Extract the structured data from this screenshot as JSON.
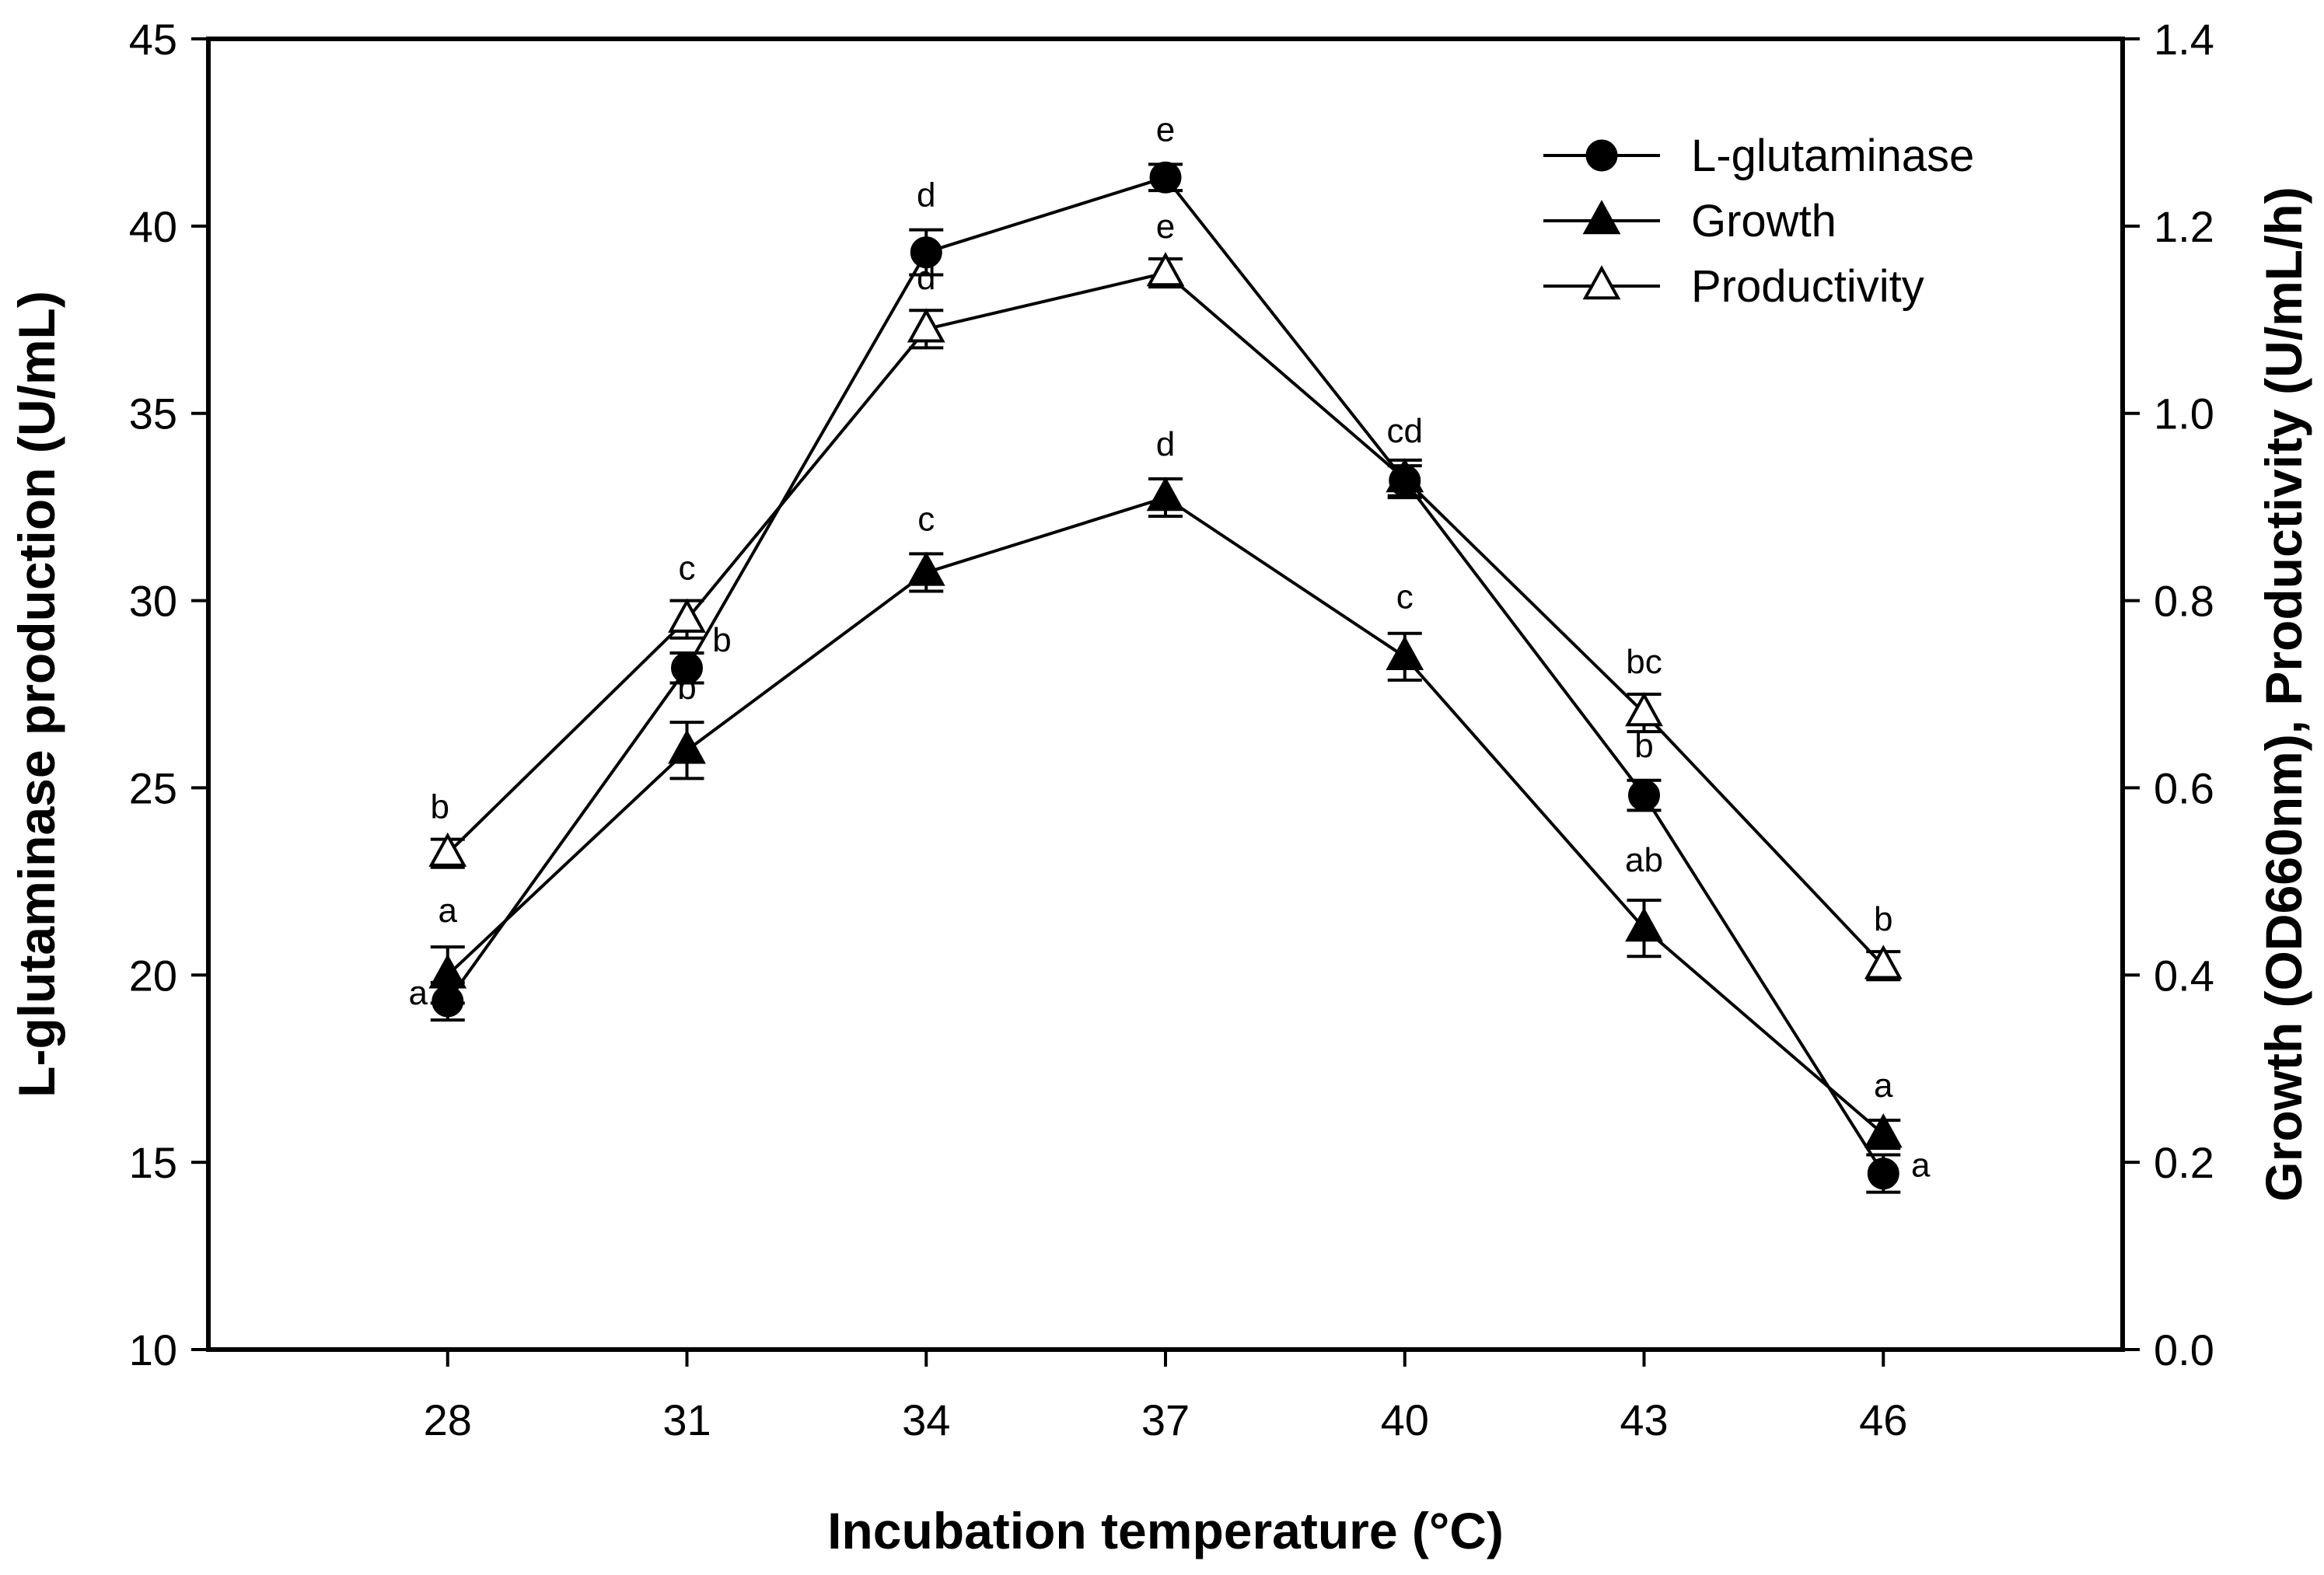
{
  "chart_data": {
    "type": "line",
    "title": "",
    "xlabel": "Incubation temperature (°C)",
    "ylabel": "L-glutaminase production (U/mL)",
    "y2label": "Growth (OD660nm), Productivity (U/mL/h)",
    "categories": [
      "28",
      "31",
      "34",
      "37",
      "40",
      "43",
      "46"
    ],
    "x": [
      28,
      31,
      34,
      37,
      40,
      43,
      46
    ],
    "xlim": [
      25,
      49
    ],
    "ylim": [
      10,
      45
    ],
    "y2lim": [
      0.0,
      1.4
    ],
    "yticks": [
      "10",
      "15",
      "20",
      "25",
      "30",
      "35",
      "40",
      "45"
    ],
    "y2ticks": [
      "0.0",
      "0.2",
      "0.4",
      "0.6",
      "0.8",
      "1.0",
      "1.2",
      "1.4"
    ],
    "grid": false,
    "legend_position": "top-right",
    "colors": {
      "line": "#000000",
      "fill": "#000000",
      "open": "#ffffff"
    },
    "series": [
      {
        "name": "L-glutaminase",
        "axis": "left",
        "marker": "filled-circle",
        "values": [
          19.3,
          28.2,
          39.3,
          41.3,
          33.2,
          24.8,
          14.7
        ],
        "errors": [
          0.5,
          0.4,
          0.6,
          0.35,
          0.4,
          0.4,
          0.5
        ],
        "labels": [
          "a",
          "b",
          "d",
          "e",
          "cd",
          "b",
          "a"
        ]
      },
      {
        "name": "Growth",
        "axis": "right",
        "marker": "filled-triangle",
        "values": [
          0.4,
          0.64,
          0.83,
          0.91,
          0.74,
          0.45,
          0.23
        ],
        "errors": [
          0.03,
          0.03,
          0.02,
          0.02,
          0.025,
          0.03,
          0.015
        ],
        "labels": [
          "a",
          "b",
          "c",
          "d",
          "c",
          "ab",
          "a"
        ]
      },
      {
        "name": "Productivity",
        "axis": "right",
        "marker": "open-triangle",
        "values": [
          0.53,
          0.78,
          1.09,
          1.15,
          0.93,
          0.68,
          0.41
        ],
        "errors": [
          0.015,
          0.02,
          0.02,
          0.015,
          0.02,
          0.02,
          0.015
        ],
        "labels": [
          "b",
          "c",
          "d",
          "e",
          "",
          "bc",
          "b"
        ]
      }
    ]
  }
}
